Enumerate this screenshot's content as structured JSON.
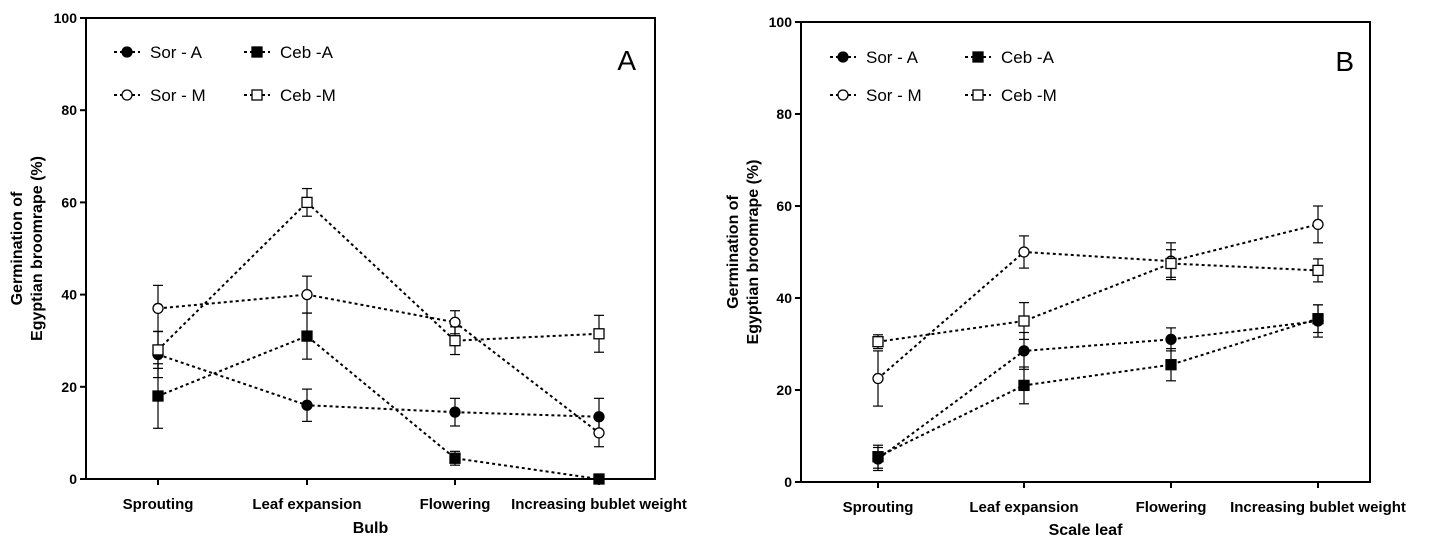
{
  "chart_data": [
    {
      "type": "line",
      "panel_label": "A",
      "title": "",
      "xlabel": "Bulb",
      "ylabel_lines": [
        "Germination of",
        "Egyptian broomrape (%)"
      ],
      "categories": [
        "Sprouting",
        "Leaf expansion",
        "Flowering",
        "Increasing bublet weight"
      ],
      "ylim": [
        0,
        100
      ],
      "yticks": [
        0,
        20,
        40,
        60,
        80,
        100
      ],
      "legend_position": "top-left",
      "series": [
        {
          "name": "Sor - A",
          "marker": "circle-filled",
          "values": [
            27,
            16,
            14.5,
            13.5
          ],
          "errors": [
            5,
            3.5,
            3,
            4
          ]
        },
        {
          "name": "Ceb -A",
          "marker": "square-filled",
          "values": [
            18,
            31,
            4.5,
            0
          ],
          "errors": [
            7,
            5,
            1.5,
            0.5
          ]
        },
        {
          "name": "Sor - M",
          "marker": "circle-open",
          "values": [
            37,
            40,
            34,
            10
          ],
          "errors": [
            5,
            4,
            2.5,
            3
          ]
        },
        {
          "name": "Ceb -M",
          "marker": "square-open",
          "values": [
            28,
            60,
            30,
            31.5
          ],
          "errors": [
            4,
            3,
            3,
            4
          ]
        }
      ]
    },
    {
      "type": "line",
      "panel_label": "B",
      "title": "",
      "xlabel": "Scale leaf",
      "ylabel_lines": [
        "Germination of",
        "Egyptian broomrape (%)"
      ],
      "categories": [
        "Sprouting",
        "Leaf expansion",
        "Flowering",
        "Increasing bublet weight"
      ],
      "ylim": [
        0,
        100
      ],
      "yticks": [
        0,
        20,
        40,
        60,
        80,
        100
      ],
      "legend_position": "top-left",
      "series": [
        {
          "name": "Sor - A",
          "marker": "circle-filled",
          "values": [
            5,
            28.5,
            31,
            35
          ],
          "errors": [
            2.5,
            4,
            2.5,
            3.5
          ]
        },
        {
          "name": "Ceb -A",
          "marker": "square-filled",
          "values": [
            5.5,
            21,
            25.5,
            35.5
          ],
          "errors": [
            2.5,
            4,
            3.5,
            3
          ]
        },
        {
          "name": "Sor - M",
          "marker": "circle-open",
          "values": [
            22.5,
            50,
            48,
            56
          ],
          "errors": [
            6,
            3.5,
            4,
            4
          ]
        },
        {
          "name": "Ceb -M",
          "marker": "square-open",
          "values": [
            30.5,
            35,
            47.5,
            46
          ],
          "errors": [
            1.5,
            4,
            3,
            2.5
          ]
        }
      ]
    }
  ]
}
